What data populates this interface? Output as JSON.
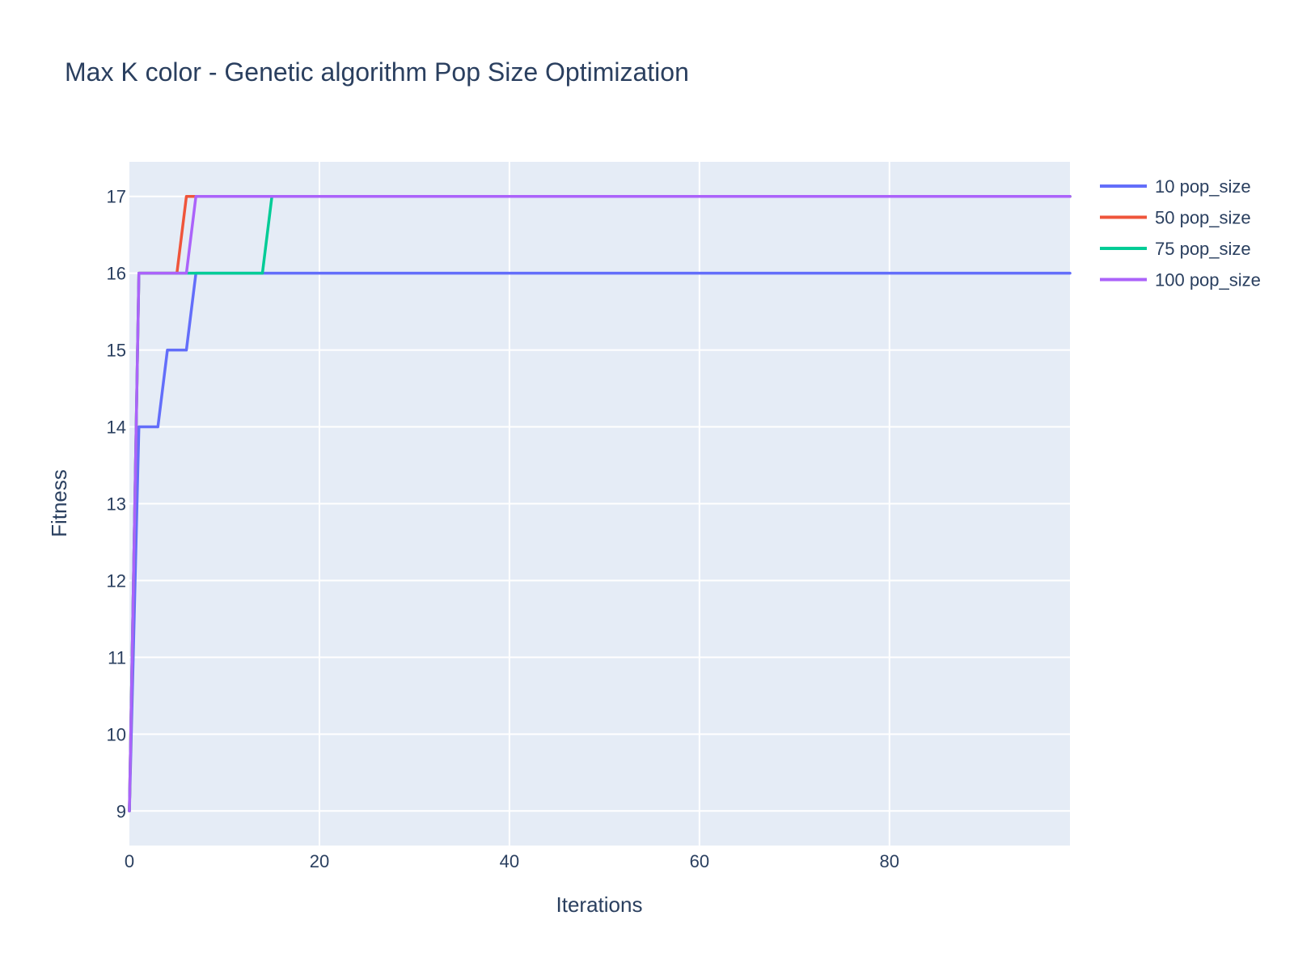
{
  "chart_data": {
    "type": "line",
    "title": "Max K color - Genetic algorithm Pop Size Optimization",
    "xlabel": "Iterations",
    "ylabel": "Fitness",
    "xlim": [
      0,
      99
    ],
    "ylim": [
      8.55,
      17.45
    ],
    "x_ticks": [
      0,
      20,
      40,
      60,
      80
    ],
    "y_ticks": [
      9,
      10,
      11,
      12,
      13,
      14,
      15,
      16,
      17
    ],
    "grid": true,
    "legend_position": "top-right outside plot",
    "plot_background": "#e5ecf6",
    "series": [
      {
        "name": "10 pop_size",
        "color": "#636efa",
        "points": [
          [
            0,
            9
          ],
          [
            1,
            14
          ],
          [
            3,
            14
          ],
          [
            4,
            15
          ],
          [
            6,
            15
          ],
          [
            7,
            16
          ],
          [
            99,
            16
          ]
        ]
      },
      {
        "name": "50 pop_size",
        "color": "#ef553b",
        "points": [
          [
            0,
            9
          ],
          [
            1,
            16
          ],
          [
            5,
            16
          ],
          [
            6,
            17
          ],
          [
            99,
            17
          ]
        ]
      },
      {
        "name": "75 pop_size",
        "color": "#00cc96",
        "points": [
          [
            0,
            9
          ],
          [
            1,
            16
          ],
          [
            14,
            16
          ],
          [
            15,
            17
          ],
          [
            99,
            17
          ]
        ]
      },
      {
        "name": "100 pop_size",
        "color": "#ab63fa",
        "points": [
          [
            0,
            9
          ],
          [
            1,
            16
          ],
          [
            6,
            16
          ],
          [
            7,
            17
          ],
          [
            99,
            17
          ]
        ]
      }
    ]
  }
}
